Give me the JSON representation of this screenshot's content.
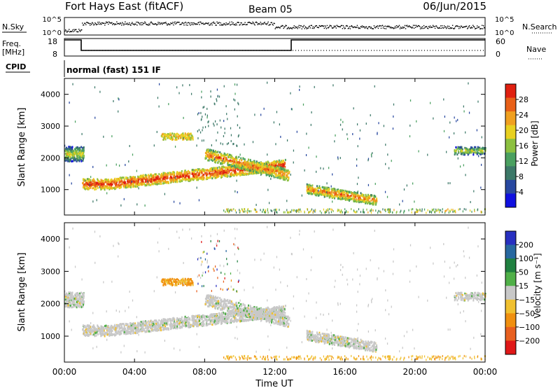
{
  "header": {
    "title": "Fort Hays East (fitACF)",
    "beam": "Beam 05",
    "date": "06/Jun/2015"
  },
  "strip_panels": {
    "nsky_label": "N.Sky",
    "nsky_ticks": [
      "10^5",
      "10^0"
    ],
    "nsearch_label": "N.Search",
    "nsearch_ticks": [
      "10^5",
      "10^0"
    ],
    "freq_label_lines": [
      "Freq.",
      "[MHz]"
    ],
    "freq_ticks": [
      "18",
      "8"
    ],
    "nave_label": "Nave",
    "nave_ticks": [
      "60",
      "0"
    ],
    "cpid_label": "CPID",
    "cpid_text": "normal (fast) 151 IF"
  },
  "colors": {
    "power_scale": [
      "#1010e0",
      "#2848a0",
      "#3c7868",
      "#4aa060",
      "#8cc040",
      "#e8d020",
      "#f0a020",
      "#e86018",
      "#e02010"
    ],
    "velocity_scale": [
      "#e01818",
      "#e86020",
      "#f09010",
      "#f0c030",
      "#c8c8c8",
      "#50b048",
      "#208040",
      "#2868a0",
      "#2830c0"
    ]
  },
  "chart_data": [
    {
      "type": "heatmap",
      "name": "power",
      "ylabel": "Slant Range [km]",
      "yticks": [
        "4000",
        "3000",
        "2000",
        "1000"
      ],
      "ylim": [
        200,
        4500
      ],
      "xlim_hours": [
        0,
        24
      ],
      "colorbar_label": "Power [dB]",
      "colorbar_ticks": [
        "28",
        "24",
        "20",
        "16",
        "12",
        "8",
        "4"
      ],
      "colorbar_range": [
        0,
        30
      ],
      "echo_bands": [
        {
          "start_h": 0.0,
          "end_h": 1.0,
          "range_km": 2150,
          "value": 12
        },
        {
          "start_h": 1.0,
          "end_h": 12.6,
          "range_km": "1200 rising to 1900",
          "value": 22
        },
        {
          "start_h": 8.0,
          "end_h": 12.8,
          "range_km": "2100 falling to 1400",
          "value": 18
        },
        {
          "start_h": 13.8,
          "end_h": 17.8,
          "range_km": "1000 falling to 600",
          "value": 20
        },
        {
          "start_h": 22.0,
          "end_h": 24.0,
          "range_km": 2200,
          "value": 10
        }
      ]
    },
    {
      "type": "heatmap",
      "name": "velocity",
      "ylabel": "Slant Range [km]",
      "yticks": [
        "4000",
        "3000",
        "2000",
        "1000"
      ],
      "ylim": [
        200,
        4500
      ],
      "xlim_hours": [
        0,
        24
      ],
      "xlabel": "Time UT",
      "xticks": [
        "00:00",
        "04:00",
        "08:00",
        "12:00",
        "16:00",
        "20:00",
        "00:00"
      ],
      "colorbar_label": "Velocity [m s⁻¹]",
      "colorbar_ticks": [
        "200",
        "100",
        "50",
        "15",
        "−15",
        "−50",
        "−100",
        "−200"
      ],
      "colorbar_range": [
        -250,
        250
      ]
    }
  ]
}
